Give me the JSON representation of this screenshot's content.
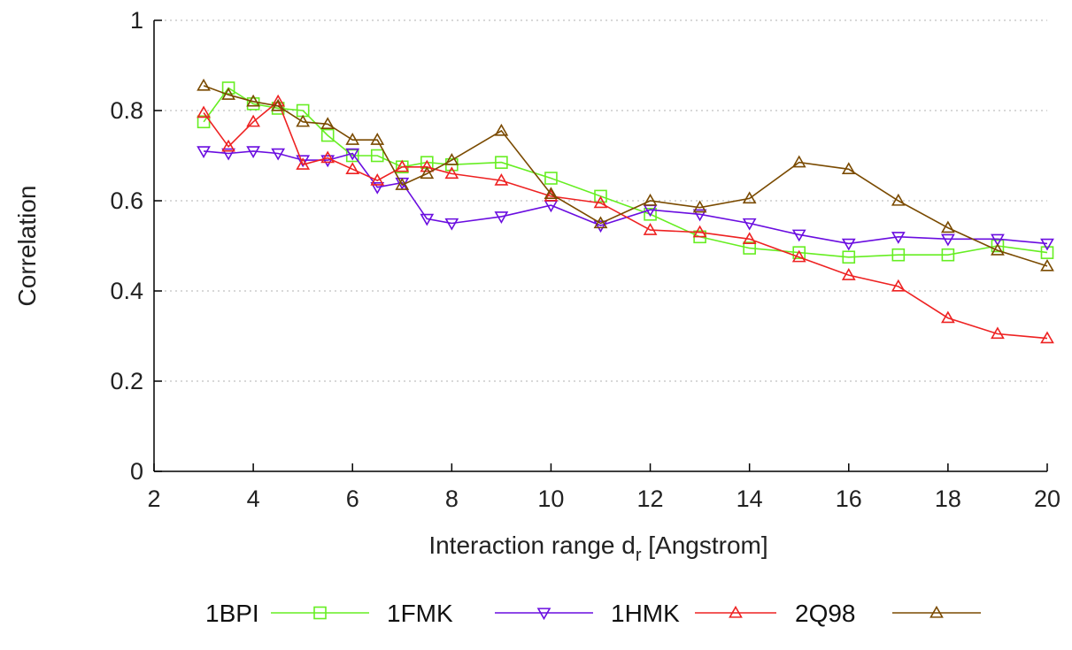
{
  "chart_data": {
    "type": "line",
    "xlabel": "Interaction range d",
    "xlabel_subscript": "r",
    "xlabel_suffix": " [Angstrom]",
    "ylabel": "Correlation",
    "xlim": [
      2,
      20
    ],
    "ylim": [
      0,
      1
    ],
    "xticks": [
      "2",
      "4",
      "6",
      "8",
      "10",
      "12",
      "14",
      "16",
      "18",
      "20"
    ],
    "yticks": [
      "0",
      "0.2",
      "0.4",
      "0.6",
      "0.8",
      "1"
    ],
    "grid": "horizontal dotted",
    "legend_position": "bottom",
    "series": [
      {
        "name": "1BPI",
        "color": "#66ee22",
        "marker": "square",
        "x": [
          3,
          3.5,
          4,
          4.5,
          5,
          5.5,
          6,
          6.5,
          7,
          7.5,
          8,
          9,
          10,
          11,
          12,
          13,
          14,
          15,
          16,
          17,
          18,
          19,
          20
        ],
        "y": [
          0.775,
          0.85,
          0.815,
          0.805,
          0.8,
          0.745,
          0.7,
          0.7,
          0.675,
          0.685,
          0.68,
          0.685,
          0.65,
          0.61,
          0.57,
          0.52,
          0.495,
          0.485,
          0.475,
          0.48,
          0.48,
          0.5,
          0.485
        ]
      },
      {
        "name": "1FMK",
        "color": "#6a0de0",
        "marker": "triangle-down",
        "x": [
          3,
          3.5,
          4,
          4.5,
          5,
          5.5,
          6,
          6.5,
          7,
          7.5,
          8,
          9,
          10,
          11,
          12,
          13,
          14,
          15,
          16,
          17,
          18,
          19,
          20
        ],
        "y": [
          0.71,
          0.705,
          0.71,
          0.705,
          0.69,
          0.69,
          0.705,
          0.63,
          0.64,
          0.56,
          0.55,
          0.565,
          0.59,
          0.545,
          0.58,
          0.57,
          0.55,
          0.525,
          0.505,
          0.52,
          0.515,
          0.515,
          0.505
        ]
      },
      {
        "name": "1HMK",
        "color": "#ee2222",
        "marker": "triangle-up",
        "x": [
          3,
          3.5,
          4,
          4.5,
          5,
          5.5,
          6,
          6.5,
          7,
          7.5,
          8,
          9,
          10,
          11,
          12,
          13,
          14,
          15,
          16,
          17,
          18,
          19,
          20
        ],
        "y": [
          0.795,
          0.72,
          0.775,
          0.82,
          0.68,
          0.695,
          0.67,
          0.645,
          0.675,
          0.675,
          0.66,
          0.645,
          0.61,
          0.595,
          0.535,
          0.53,
          0.515,
          0.475,
          0.435,
          0.41,
          0.34,
          0.305,
          0.295
        ]
      },
      {
        "name": "2Q98",
        "color": "#7a4a00",
        "marker": "triangle-up",
        "x": [
          3,
          3.5,
          4,
          4.5,
          5,
          5.5,
          6,
          6.5,
          7,
          7.5,
          8,
          9,
          10,
          11,
          12,
          13,
          14,
          15,
          16,
          17,
          18,
          19,
          20
        ],
        "y": [
          0.855,
          0.835,
          0.82,
          0.81,
          0.775,
          0.77,
          0.735,
          0.735,
          0.635,
          0.66,
          0.69,
          0.755,
          0.615,
          0.55,
          0.6,
          0.585,
          0.605,
          0.685,
          0.67,
          0.6,
          0.54,
          0.49,
          0.455
        ]
      }
    ]
  }
}
